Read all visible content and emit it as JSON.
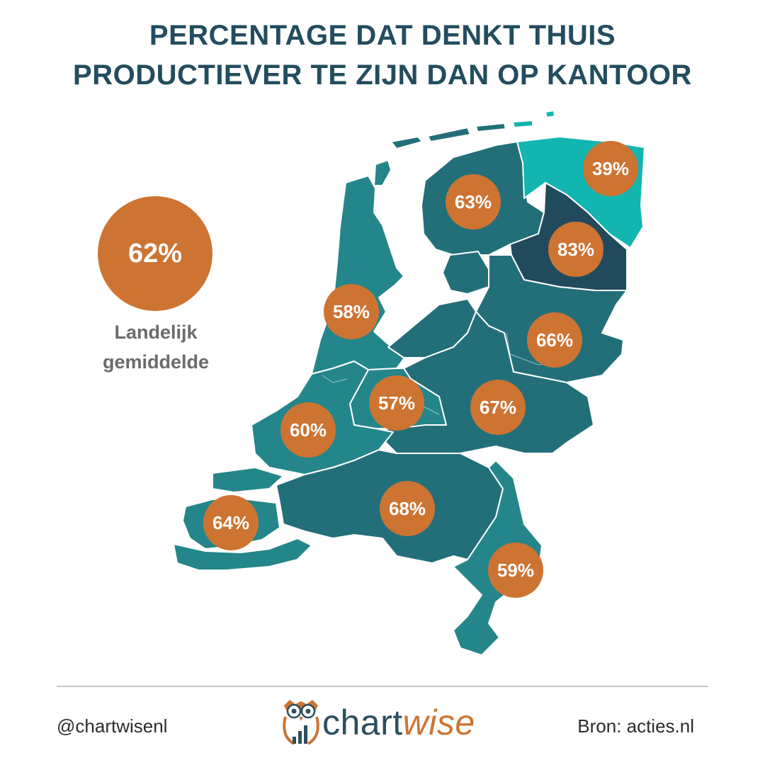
{
  "header": {
    "title_line1": "PERCENTAGE DAT DENKT THUIS",
    "title_line2": "PRODUCTIEVER TE ZIJN DAN OP KANTOOR"
  },
  "national": {
    "value_label": "62%",
    "caption_line1": "Landelijk",
    "caption_line2": "gemiddelde"
  },
  "chart_data": {
    "type": "choropleth",
    "title": "PERCENTAGE DAT DENKT THUIS PRODUCTIEVER TE ZIJN DAN OP KANTOOR",
    "unit": "%",
    "national_average": 62,
    "regions": [
      {
        "name": "Groningen",
        "value": 39,
        "label": "39%",
        "color": "#13b5b0"
      },
      {
        "name": "Friesland",
        "value": 63,
        "label": "63%",
        "color": "#226f79"
      },
      {
        "name": "Drenthe",
        "value": 83,
        "label": "83%",
        "color": "#214a5c"
      },
      {
        "name": "Noord-Holland",
        "value": 58,
        "label": "58%",
        "color": "#24868a"
      },
      {
        "name": "Overijssel",
        "value": 66,
        "label": "66%",
        "color": "#226f79"
      },
      {
        "name": "Utrecht",
        "value": 57,
        "label": "57%",
        "color": "#24868a"
      },
      {
        "name": "Gelderland",
        "value": 67,
        "label": "67%",
        "color": "#226f79"
      },
      {
        "name": "Zuid-Holland",
        "value": 60,
        "label": "60%",
        "color": "#24868a"
      },
      {
        "name": "Zeeland",
        "value": 64,
        "label": "64%",
        "color": "#24868a"
      },
      {
        "name": "Noord-Brabant",
        "value": 68,
        "label": "68%",
        "color": "#226f79"
      },
      {
        "name": "Limburg",
        "value": 59,
        "label": "59%",
        "color": "#24868a"
      }
    ],
    "bubble_color": "#cd7433"
  },
  "footer": {
    "handle": "@chartwisenl",
    "source": "Bron: acties.nl",
    "brand_part1": "chart",
    "brand_part2": "wise"
  },
  "icons": [
    "owl-logo-icon",
    "bar-chart-icon"
  ]
}
